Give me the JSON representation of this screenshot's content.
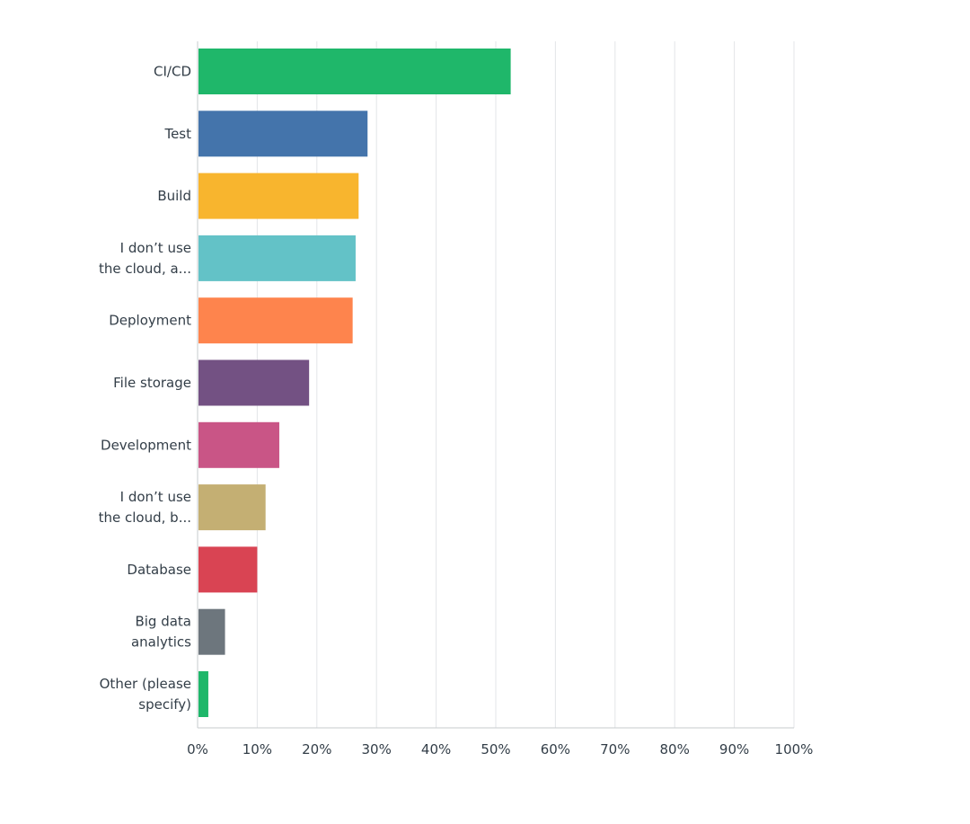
{
  "chart_data": {
    "type": "bar",
    "orientation": "horizontal",
    "categories": [
      [
        "CI/CD"
      ],
      [
        "Test"
      ],
      [
        "Build"
      ],
      [
        "I don’t use",
        "the cloud, a..."
      ],
      [
        "Deployment"
      ],
      [
        "File storage"
      ],
      [
        "Development"
      ],
      [
        "I don’t use",
        "the cloud, b..."
      ],
      [
        "Database"
      ],
      [
        "Big data",
        "analytics"
      ],
      [
        "Other (please",
        "specify)"
      ]
    ],
    "values": [
      52.5,
      28.5,
      27,
      26.5,
      26,
      18.7,
      13.7,
      11.4,
      10,
      4.6,
      1.8
    ],
    "colors": [
      "#1fb76a",
      "#4474ab",
      "#f8b52e",
      "#63c2c7",
      "#fe844d",
      "#735183",
      "#c95586",
      "#c4af73",
      "#d94453",
      "#6d767d",
      "#1fb76a"
    ],
    "xlim": [
      0,
      100
    ],
    "xticks": [
      0,
      10,
      20,
      30,
      40,
      50,
      60,
      70,
      80,
      90,
      100
    ],
    "tick_labels": [
      "0%",
      "10%",
      "20%",
      "30%",
      "40%",
      "50%",
      "60%",
      "70%",
      "80%",
      "90%",
      "100%"
    ],
    "grid": true,
    "title": "",
    "xlabel": "",
    "ylabel": ""
  }
}
